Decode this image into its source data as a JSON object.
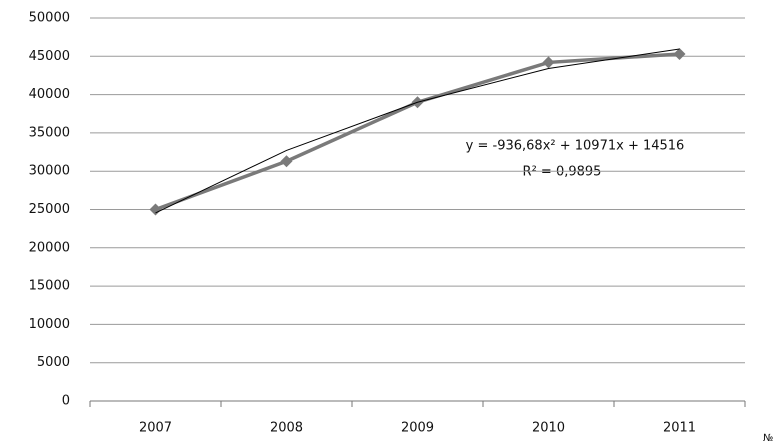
{
  "chart_data": {
    "type": "line",
    "categories": [
      "2007",
      "2008",
      "2009",
      "2010",
      "2011"
    ],
    "series": [
      {
        "color": "#7a7a7a",
        "values": [
          25000,
          31300,
          39000,
          44200,
          45300
        ]
      }
    ],
    "trendline": {
      "color": "#000000",
      "values": [
        24550,
        32711,
        39000,
        43413,
        45954
      ],
      "equation": "y = -936,68x² + 10971x  + 14516",
      "r_squared": "R² = 0,9895"
    },
    "ylim": [
      0,
      50000
    ],
    "yticks": [
      0,
      5000,
      10000,
      15000,
      20000,
      25000,
      30000,
      35000,
      40000,
      45000,
      50000
    ],
    "grid": true,
    "corner_label": "№"
  }
}
